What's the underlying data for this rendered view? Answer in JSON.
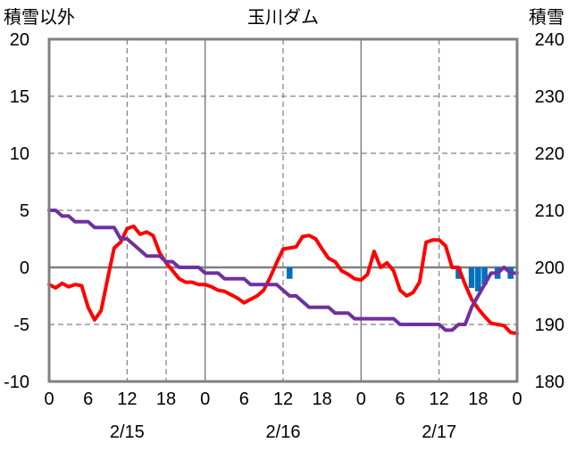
{
  "chart_data": {
    "type": "line",
    "title": "玉川ダム",
    "ylabel_left": "積雪以外",
    "ylabel_right": "積雪",
    "ylim_left": [
      -10,
      20
    ],
    "ylim_right": [
      180,
      240
    ],
    "yticks_left": [
      -10,
      -5,
      0,
      5,
      10,
      15,
      20
    ],
    "yticks_right": [
      180,
      190,
      200,
      210,
      220,
      230,
      240
    ],
    "xlim": [
      0,
      72
    ],
    "xticks": [
      0,
      6,
      12,
      18,
      24,
      30,
      36,
      42,
      48,
      54,
      60,
      66,
      72
    ],
    "xtick_labels": [
      "0",
      "6",
      "12",
      "18",
      "0",
      "6",
      "12",
      "18",
      "0",
      "6",
      "12",
      "18",
      "0"
    ],
    "date_labels": [
      {
        "x": 12,
        "label": "2/15"
      },
      {
        "x": 36,
        "label": "2/16"
      },
      {
        "x": 60,
        "label": "2/17"
      }
    ],
    "day_boundaries": [
      24,
      48
    ],
    "dashed_x": [
      12,
      18,
      36,
      60
    ],
    "dashed_y": [
      15,
      10,
      5,
      -5
    ],
    "zero_line": 0,
    "colors": {
      "temperature": "#ff0000",
      "snow_depth": "#7030a0",
      "precipitation": "#0070c0",
      "frame": "#808080",
      "grid": "#808080"
    },
    "series": [
      {
        "axis": "left",
        "style": "line",
        "color": "#ff0000",
        "x": [
          0,
          1,
          2,
          3,
          4,
          5,
          6,
          7,
          8,
          9,
          10,
          11,
          12,
          13,
          14,
          15,
          16,
          17,
          18,
          19,
          20,
          21,
          22,
          23,
          24,
          25,
          26,
          27,
          28,
          29,
          30,
          31,
          32,
          33,
          34,
          35,
          36,
          37,
          38,
          39,
          40,
          41,
          42,
          43,
          44,
          45,
          46,
          47,
          48,
          49,
          50,
          51,
          52,
          53,
          54,
          55,
          56,
          57,
          58,
          59,
          60,
          61,
          62,
          63,
          64,
          65,
          66,
          67,
          68,
          69,
          70,
          71,
          72
        ],
        "values": [
          -1.5,
          -1.8,
          -1.4,
          -1.7,
          -1.5,
          -1.6,
          -3.5,
          -4.6,
          -3.8,
          -1.0,
          1.7,
          2.2,
          3.4,
          3.6,
          2.9,
          3.1,
          2.8,
          1.3,
          0.4,
          -0.3,
          -1.0,
          -1.3,
          -1.3,
          -1.5,
          -1.5,
          -1.7,
          -2.0,
          -2.1,
          -2.4,
          -2.7,
          -3.1,
          -2.8,
          -2.5,
          -2.0,
          -0.9,
          0.4,
          1.6,
          1.7,
          1.8,
          2.7,
          2.8,
          2.5,
          1.6,
          0.8,
          0.5,
          -0.3,
          -0.6,
          -1.0,
          -1.1,
          -0.6,
          1.4,
          0.0,
          0.4,
          -0.3,
          -2.0,
          -2.5,
          -2.2,
          -1.3,
          2.2,
          2.4,
          2.4,
          1.9,
          0.0,
          0.0,
          -1.5,
          -2.8,
          -3.6,
          -4.3,
          -4.9,
          -5.0,
          -5.1,
          -5.7,
          -5.8
        ]
      },
      {
        "axis": "right",
        "style": "line",
        "color": "#7030a0",
        "x": [
          0,
          1,
          2,
          3,
          4,
          5,
          6,
          7,
          8,
          9,
          10,
          11,
          12,
          13,
          14,
          15,
          16,
          17,
          18,
          19,
          20,
          21,
          22,
          23,
          24,
          25,
          26,
          27,
          28,
          29,
          30,
          31,
          32,
          33,
          34,
          35,
          36,
          37,
          38,
          39,
          40,
          41,
          42,
          43,
          44,
          45,
          46,
          47,
          48,
          49,
          50,
          51,
          52,
          53,
          54,
          55,
          56,
          57,
          58,
          59,
          60,
          61,
          62,
          63,
          64,
          65,
          66,
          67,
          68,
          69,
          70,
          71,
          72
        ],
        "values": [
          210,
          210,
          209,
          209,
          208,
          208,
          208,
          207,
          207,
          207,
          207,
          205,
          205,
          204,
          203,
          202,
          202,
          202,
          201,
          201,
          200,
          200,
          200,
          200,
          199,
          199,
          199,
          198,
          198,
          198,
          198,
          197,
          197,
          197,
          197,
          197,
          196,
          195,
          195,
          194,
          193,
          193,
          193,
          193,
          192,
          192,
          192,
          191,
          191,
          191,
          191,
          191,
          191,
          191,
          190,
          190,
          190,
          190,
          190,
          190,
          190,
          189,
          189,
          190,
          190,
          193,
          195,
          197,
          199,
          199,
          200,
          199,
          199
        ]
      },
      {
        "axis": "left",
        "style": "bar",
        "color": "#0070c0",
        "x": [
          37,
          63,
          65,
          66,
          67,
          69,
          71
        ],
        "values": [
          -1.0,
          -1.0,
          -1.8,
          -2.1,
          -1.5,
          -1.0,
          -1.0
        ]
      }
    ]
  }
}
